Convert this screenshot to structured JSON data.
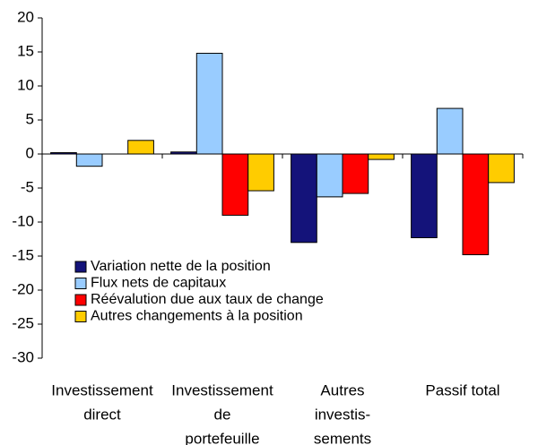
{
  "chart_data": {
    "type": "bar",
    "categories": [
      [
        "Investissement",
        "direct"
      ],
      [
        "Investissement",
        "de",
        "portefeuille"
      ],
      [
        "Autres",
        "investis-",
        "sements"
      ],
      [
        "Passif total"
      ]
    ],
    "series": [
      {
        "name": "Variation nette de la position",
        "color": "#14137a",
        "values": [
          0.2,
          0.3,
          -13,
          -12.3
        ]
      },
      {
        "name": "Flux nets de capitaux",
        "color": "#99ccff",
        "values": [
          -1.8,
          14.8,
          -6.3,
          6.7
        ]
      },
      {
        "name": "Réévalution due aux taux de change",
        "color": "#ff0000",
        "values": [
          0,
          -9,
          -5.8,
          -14.8
        ]
      },
      {
        "name": "Autres changements à la position",
        "color": "#ffcc00",
        "values": [
          2,
          -5.4,
          -0.8,
          -4.2
        ]
      }
    ],
    "ylim": [
      -30,
      20
    ],
    "yticks": [
      -30,
      -25,
      -20,
      -15,
      -10,
      -5,
      0,
      5,
      10,
      15,
      20
    ],
    "grid": false,
    "legend": "lower left"
  }
}
